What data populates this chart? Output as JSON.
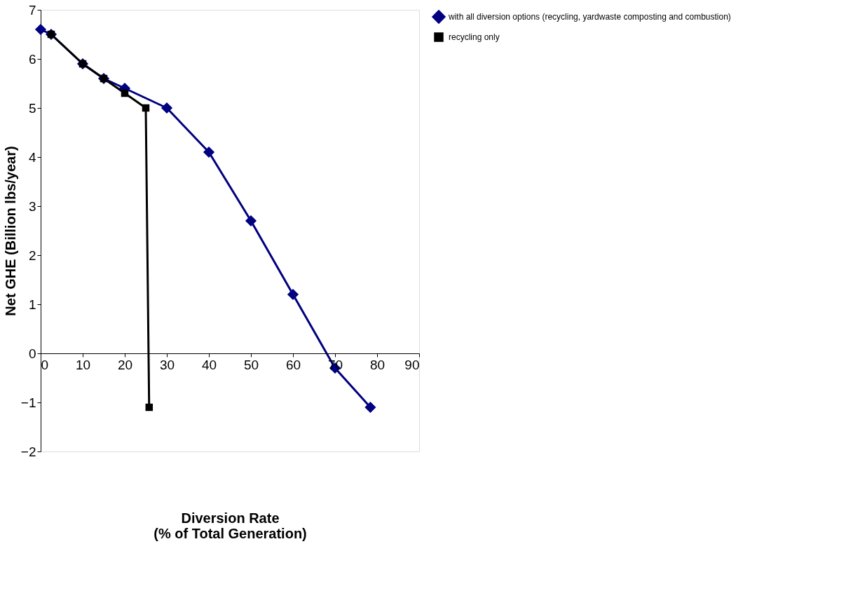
{
  "chart_data": {
    "type": "line",
    "xlabel": "Diversion Rate\n(% of Total Generation)",
    "ylabel": "Net GHE (Billion lbs/year)",
    "xlim": [
      0,
      90
    ],
    "xticks": [
      0,
      10,
      20,
      30,
      40,
      50,
      60,
      70,
      80,
      90
    ],
    "ylim": [
      -2,
      7
    ],
    "yticks": [
      -2,
      -1,
      0,
      1,
      2,
      3,
      4,
      5,
      6,
      7
    ],
    "grid": false,
    "legend": "right",
    "series": [
      {
        "name": "with all diversion options (recycling, yardwaste composting and combustion)",
        "color": "#000080",
        "marker": "diamond",
        "x": [
          0,
          2.5,
          10,
          15,
          20,
          30,
          40,
          50,
          60,
          70,
          78.4
        ],
        "values": [
          6.6,
          6.5,
          5.9,
          5.6,
          5.4,
          5.0,
          4.1,
          2.7,
          1.2,
          -0.3,
          -1.1
        ]
      },
      {
        "name": "recycling only",
        "color": "#000000",
        "marker": "square",
        "x": [
          2.5,
          10,
          15,
          20,
          25,
          25.8
        ],
        "values": [
          6.5,
          5.9,
          5.6,
          5.3,
          5.0,
          -1.1
        ]
      }
    ]
  }
}
